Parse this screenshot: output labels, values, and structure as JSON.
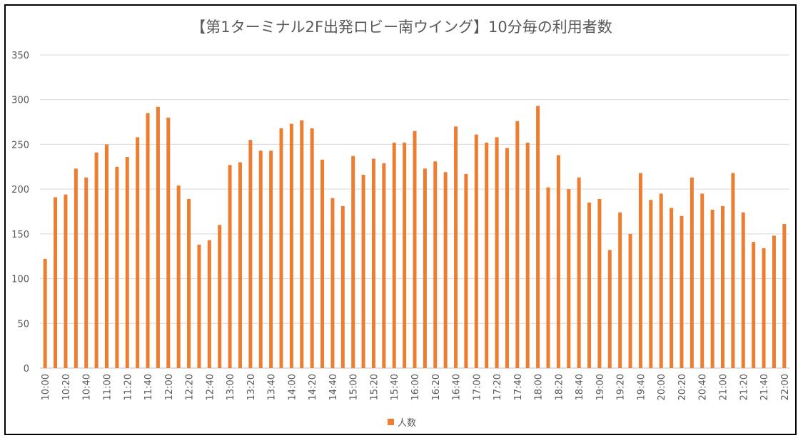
{
  "chart_data": {
    "type": "bar",
    "title": "【第1ターミナル2F出発ロビー南ウイング】10分毎の利用者数",
    "xlabel": "",
    "ylabel": "",
    "ylim": [
      0,
      350
    ],
    "yticks": [
      0,
      50,
      100,
      150,
      200,
      250,
      300,
      350
    ],
    "grid": true,
    "legend_position": "bottom",
    "bar_color": "#ED7D31",
    "categories": [
      "10:00",
      "10:10",
      "10:20",
      "10:30",
      "10:40",
      "10:50",
      "11:00",
      "11:10",
      "11:20",
      "11:30",
      "11:40",
      "11:50",
      "12:00",
      "12:10",
      "12:20",
      "12:30",
      "12:40",
      "12:50",
      "13:00",
      "13:10",
      "13:20",
      "13:30",
      "13:40",
      "13:50",
      "14:00",
      "14:10",
      "14:20",
      "14:30",
      "14:40",
      "14:50",
      "15:00",
      "15:10",
      "15:20",
      "15:30",
      "15:40",
      "15:50",
      "16:00",
      "16:10",
      "16:20",
      "16:30",
      "16:40",
      "16:50",
      "17:00",
      "17:10",
      "17:20",
      "17:30",
      "17:40",
      "17:50",
      "18:00",
      "18:10",
      "18:20",
      "18:30",
      "18:40",
      "18:50",
      "19:00",
      "19:10",
      "19:20",
      "19:30",
      "19:40",
      "19:50",
      "20:00",
      "20:10",
      "20:20",
      "20:30",
      "20:40",
      "20:50",
      "21:00",
      "21:10",
      "21:20",
      "21:30",
      "21:40",
      "21:50",
      "22:00"
    ],
    "x_tick_labels": [
      "10:00",
      "10:20",
      "10:40",
      "11:00",
      "11:20",
      "11:40",
      "12:00",
      "12:20",
      "12:40",
      "13:00",
      "13:20",
      "13:40",
      "14:00",
      "14:20",
      "14:40",
      "15:00",
      "15:20",
      "15:40",
      "16:00",
      "16:20",
      "16:40",
      "17:00",
      "17:20",
      "17:40",
      "18:00",
      "18:20",
      "18:40",
      "19:00",
      "19:20",
      "19:40",
      "20:00",
      "20:20",
      "20:40",
      "21:00",
      "21:20",
      "21:40",
      "22:00"
    ],
    "series": [
      {
        "name": "人数",
        "values": [
          122,
          191,
          194,
          223,
          213,
          241,
          250,
          225,
          236,
          258,
          285,
          292,
          280,
          204,
          189,
          138,
          143,
          160,
          227,
          230,
          255,
          243,
          243,
          268,
          273,
          277,
          268,
          233,
          190,
          181,
          237,
          216,
          234,
          229,
          252,
          252,
          265,
          223,
          231,
          219,
          270,
          217,
          261,
          252,
          258,
          246,
          276,
          252,
          293,
          202,
          238,
          200,
          213,
          185,
          189,
          132,
          174,
          150,
          218,
          188,
          195,
          179,
          170,
          213,
          195,
          177,
          181,
          218,
          174,
          141,
          134,
          148,
          161
        ]
      }
    ]
  }
}
